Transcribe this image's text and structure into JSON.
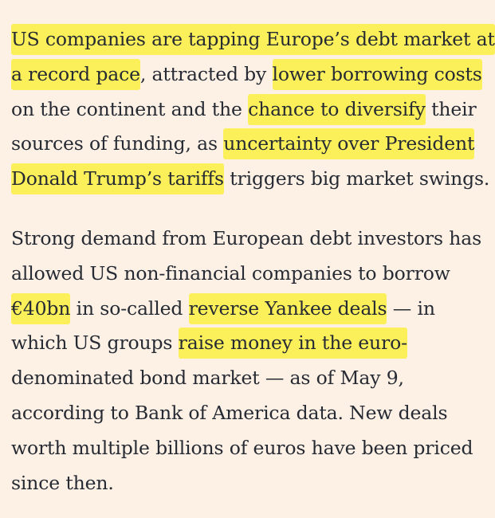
{
  "colors": {
    "background": "#fdf1e6",
    "text": "#262a33",
    "highlight": "#fbf05a"
  },
  "paragraphs": [
    {
      "lines": [
        [
          {
            "text": "US companies are tapping Europe’s debt market at",
            "highlight": true
          }
        ],
        [
          {
            "text": "a record pace",
            "highlight": true
          },
          {
            "text": ", attracted by ",
            "highlight": false
          },
          {
            "text": "lower borrowing costs",
            "highlight": true
          }
        ],
        [
          {
            "text": "on the continent and the ",
            "highlight": false
          },
          {
            "text": "chance to diversify",
            "highlight": true
          },
          {
            "text": " their",
            "highlight": false
          }
        ],
        [
          {
            "text": "sources of funding, as ",
            "highlight": false
          },
          {
            "text": "uncertainty over President",
            "highlight": true
          }
        ],
        [
          {
            "text": "Donald Trump’s tariffs",
            "highlight": true
          },
          {
            "text": " triggers big market swings.",
            "highlight": false
          }
        ]
      ]
    },
    {
      "lines": [
        [
          {
            "text": "Strong demand from European debt investors has",
            "highlight": false
          }
        ],
        [
          {
            "text": "allowed US non-financial companies to borrow",
            "highlight": false
          }
        ],
        [
          {
            "text": "€40bn",
            "highlight": true
          },
          {
            "text": " in so-called ",
            "highlight": false
          },
          {
            "text": "reverse Yankee deals",
            "highlight": true
          },
          {
            "text": " — in",
            "highlight": false
          }
        ],
        [
          {
            "text": "which US groups ",
            "highlight": false
          },
          {
            "text": "raise money in the euro-",
            "highlight": true
          }
        ],
        [
          {
            "text": "denominated bond market — as of May 9,",
            "highlight": false
          }
        ],
        [
          {
            "text": "according to Bank of America data. New deals",
            "highlight": false
          }
        ],
        [
          {
            "text": "worth multiple billions of euros have been priced",
            "highlight": false
          }
        ],
        [
          {
            "text": "since then.",
            "highlight": false
          }
        ]
      ]
    }
  ]
}
